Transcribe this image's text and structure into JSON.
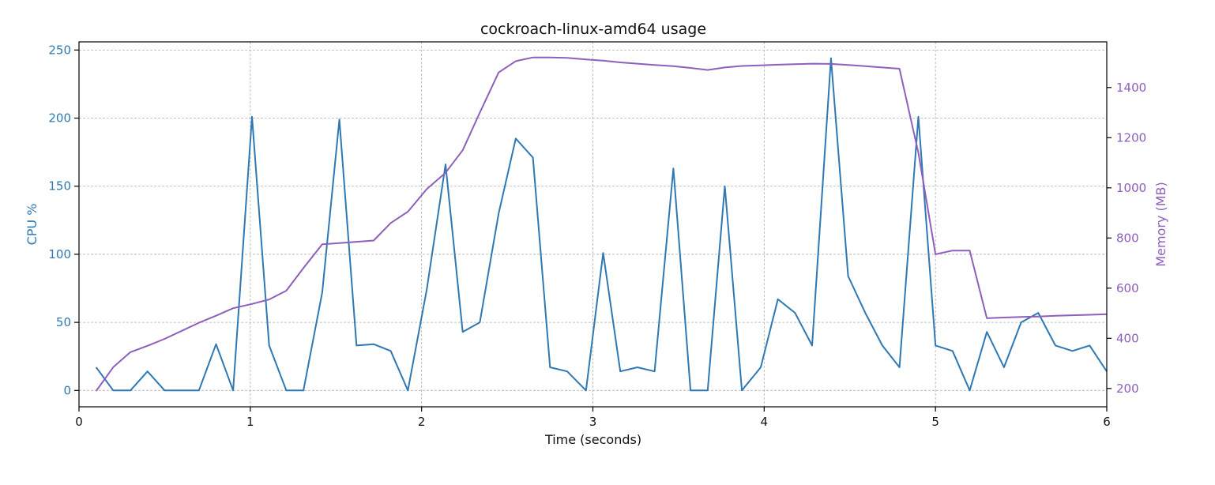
{
  "chart_data": {
    "type": "line",
    "title": "cockroach-linux-amd64 usage",
    "xlabel": "Time (seconds)",
    "ylabel_left": "CPU %",
    "ylabel_right": "Memory (MB)",
    "xlim": [
      0,
      6
    ],
    "ylim_left": [
      -12,
      256
    ],
    "ylim_right": [
      127,
      1582
    ],
    "x_ticks": [
      0,
      1,
      2,
      3,
      4,
      5,
      6
    ],
    "y_ticks_left": [
      0,
      50,
      100,
      150,
      200,
      250
    ],
    "y_ticks_right": [
      200,
      400,
      600,
      800,
      1000,
      1200,
      1400
    ],
    "grid": true,
    "colors": {
      "cpu": "#2f78b4",
      "memory": "#8e5fbd",
      "grid": "#b0b0b0"
    },
    "series": [
      {
        "key": "cpu",
        "axis": "left",
        "x": [
          0.1,
          0.2,
          0.3,
          0.4,
          0.5,
          0.6,
          0.7,
          0.8,
          0.9,
          1.01,
          1.11,
          1.21,
          1.31,
          1.42,
          1.52,
          1.62,
          1.72,
          1.82,
          1.92,
          2.03,
          2.14,
          2.24,
          2.34,
          2.45,
          2.55,
          2.65,
          2.75,
          2.85,
          2.96,
          3.06,
          3.16,
          3.26,
          3.36,
          3.47,
          3.57,
          3.67,
          3.77,
          3.87,
          3.98,
          4.08,
          4.18,
          4.28,
          4.39,
          4.49,
          4.59,
          4.69,
          4.79,
          4.9,
          5.0,
          5.1,
          5.2,
          5.3,
          5.4,
          5.5,
          5.6,
          5.7,
          5.8,
          5.9,
          6.0
        ],
        "y": [
          17,
          0,
          0,
          14,
          0,
          0,
          0,
          34,
          0,
          201,
          33,
          0,
          0,
          72,
          199,
          33,
          34,
          29,
          0,
          74,
          166,
          43,
          50,
          130,
          185,
          171,
          17,
          14,
          0,
          101,
          14,
          17,
          14,
          163,
          0,
          0,
          150,
          0,
          17,
          67,
          57,
          33,
          244,
          84,
          57,
          33,
          17,
          201,
          33,
          29,
          0,
          43,
          17,
          50,
          57,
          33,
          29,
          33,
          14
        ]
      },
      {
        "key": "memory",
        "axis": "right",
        "x": [
          0.1,
          0.2,
          0.3,
          0.4,
          0.5,
          0.6,
          0.7,
          0.8,
          0.9,
          1.01,
          1.11,
          1.21,
          1.31,
          1.42,
          1.52,
          1.62,
          1.72,
          1.82,
          1.92,
          2.03,
          2.14,
          2.24,
          2.34,
          2.45,
          2.55,
          2.65,
          2.75,
          2.85,
          2.96,
          3.06,
          3.16,
          3.26,
          3.36,
          3.47,
          3.57,
          3.67,
          3.77,
          3.87,
          3.98,
          4.08,
          4.18,
          4.28,
          4.39,
          4.49,
          4.59,
          4.69,
          4.79,
          4.9,
          5.0,
          5.1,
          5.2,
          5.3,
          5.4,
          5.5,
          5.6,
          5.7,
          5.8,
          5.9,
          6.0
        ],
        "y": [
          190,
          285,
          345,
          370,
          398,
          430,
          462,
          490,
          520,
          537,
          555,
          590,
          680,
          775,
          780,
          785,
          790,
          860,
          905,
          995,
          1060,
          1150,
          1300,
          1460,
          1505,
          1520,
          1520,
          1518,
          1512,
          1507,
          1500,
          1495,
          1490,
          1485,
          1478,
          1470,
          1480,
          1486,
          1488,
          1491,
          1493,
          1495,
          1494,
          1490,
          1485,
          1480,
          1475,
          1140,
          735,
          750,
          750,
          480,
          483,
          485,
          487,
          490,
          492,
          494,
          496
        ]
      }
    ]
  }
}
